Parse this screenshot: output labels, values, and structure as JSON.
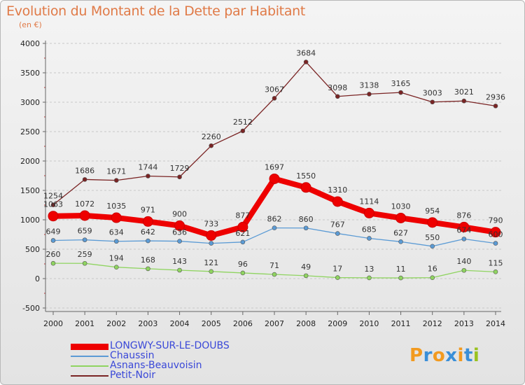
{
  "title": "Evolution du Montant de la Dette par Habitant",
  "subtitle": "(en €)",
  "logo_text": "Proxiti",
  "chart_data": {
    "type": "line",
    "x": [
      "2000",
      "2001",
      "2002",
      "2003",
      "2004",
      "2005",
      "2006",
      "2007",
      "2008",
      "2009",
      "2010",
      "2011",
      "2012",
      "2013",
      "2014"
    ],
    "ylim": [
      -500,
      4000
    ],
    "yticks": [
      "-500",
      "0",
      "500",
      "1000",
      "1500",
      "2000",
      "2500",
      "3000",
      "3500",
      "4000"
    ],
    "grid": "horizontal dashed",
    "legend_position": "bottom-left",
    "series": [
      {
        "name": "LONGWY-SUR-LE-DOUBS",
        "color": "#ee0000",
        "values": [
          1063,
          1072,
          1035,
          971,
          900,
          733,
          877,
          1697,
          1550,
          1310,
          1114,
          1030,
          954,
          876,
          790
        ],
        "labels": [
          "1063",
          "1072",
          "1035",
          "971",
          "900",
          "733",
          "877",
          "1697",
          "1550",
          "1310",
          "1114",
          "1030",
          "954",
          "876",
          "790"
        ]
      },
      {
        "name": "Chaussin",
        "color": "#5b9bd5",
        "values": [
          649,
          659,
          634,
          642,
          636,
          600,
          621,
          862,
          860,
          767,
          685,
          627,
          550,
          674,
          600
        ],
        "labels": [
          "649",
          "659",
          "634",
          "642",
          "636",
          "",
          "621",
          "862",
          "860",
          "767",
          "685",
          "627",
          "550",
          "674",
          "600"
        ]
      },
      {
        "name": "Asnans-Beauvoisin",
        "color": "#8fd460",
        "values": [
          260,
          259,
          194,
          168,
          143,
          121,
          96,
          71,
          49,
          17,
          13,
          11,
          16,
          140,
          115
        ],
        "labels": [
          "260",
          "259",
          "194",
          "168",
          "143",
          "121",
          "96",
          "71",
          "49",
          "17",
          "13",
          "11",
          "16",
          "140",
          "115"
        ]
      },
      {
        "name": "Petit-Noir",
        "color": "#7a2424",
        "values": [
          1254,
          1686,
          1671,
          1744,
          1729,
          2260,
          2512,
          3067,
          3684,
          3098,
          3138,
          3165,
          3003,
          3021,
          2936
        ],
        "labels": [
          "1254",
          "1686",
          "1671",
          "1744",
          "1729",
          "2260",
          "2512",
          "3067",
          "3684",
          "3098",
          "3138",
          "3165",
          "3003",
          "3021",
          "2936"
        ]
      }
    ]
  }
}
